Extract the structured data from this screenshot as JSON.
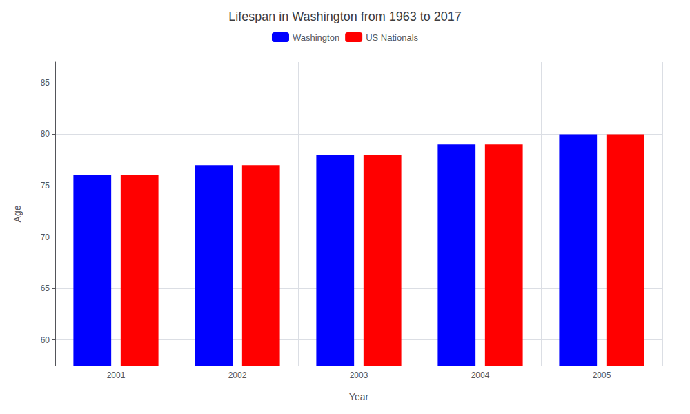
{
  "chart_data": {
    "type": "bar",
    "title": "Lifespan in Washington from 1963 to 2017",
    "x_label": "Year",
    "y_label": "Age",
    "categories": [
      "2001",
      "2002",
      "2003",
      "2004",
      "2005"
    ],
    "series": [
      {
        "name": "Washington",
        "color": "#0000ff",
        "values": [
          76.0,
          77.0,
          78.0,
          79.0,
          80.0
        ]
      },
      {
        "name": "US Nationals",
        "color": "#ff0000",
        "values": [
          76.0,
          77.0,
          78.0,
          79.0,
          80.0
        ]
      }
    ],
    "ylim": [
      57.5,
      87
    ],
    "yticks": [
      60,
      65,
      70,
      75,
      80,
      85
    ],
    "grid": true,
    "legend": "top"
  }
}
